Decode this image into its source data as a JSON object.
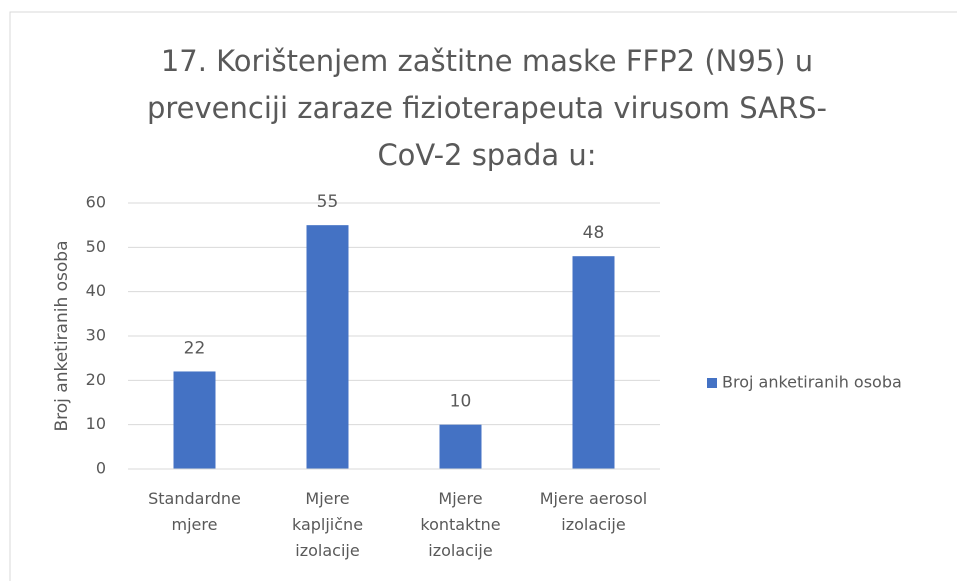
{
  "chart_data": {
    "type": "bar",
    "title": "17. Korištenjem zaštitne maske FFP2 (N95) u prevenciji zaraze fizioterapeuta virusom SARS-CoV-2 spada u:",
    "y_label": "Broj anketiranih osoba",
    "categories": [
      "Standardne mjere",
      "Mjere kapljične izolacije",
      "Mjere kontaktne izolacije",
      "Mjere aerosol izolacije"
    ],
    "series": [
      {
        "name": "Broj anketiranih osoba",
        "color": "#4472c4",
        "values": [
          22,
          55,
          10,
          48
        ]
      }
    ],
    "ylim": [
      0,
      60
    ],
    "yticks": [
      0,
      10,
      20,
      30,
      40,
      50,
      60
    ],
    "grid": true,
    "legend": "right"
  }
}
